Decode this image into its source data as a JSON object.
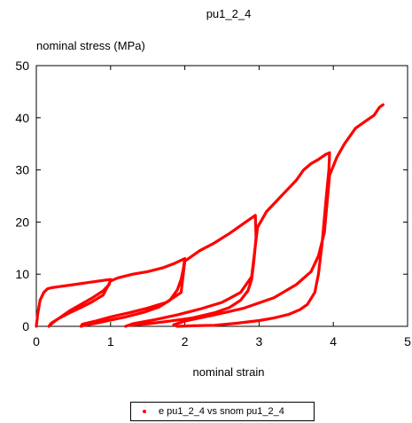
{
  "chart_data": {
    "type": "line",
    "title": "pu1_2_4",
    "xlabel": "nominal strain",
    "ylabel": "nominal stress (MPa)",
    "xlim": [
      0,
      5
    ],
    "ylim": [
      0,
      50
    ],
    "xticks": [
      "0",
      "1",
      "2",
      "3",
      "4",
      "5"
    ],
    "yticks": [
      "0",
      "10",
      "20",
      "30",
      "40",
      "50"
    ],
    "grid": false,
    "legend_position": "bottom",
    "color": "#ff0000",
    "series": [
      {
        "name": "e pu1_2_4 vs snom pu1_2_4",
        "x": [
          0,
          0.02,
          0.05,
          0.1,
          0.15,
          0.2,
          0.3,
          0.5,
          0.7,
          0.85,
          1.0,
          0.98,
          0.9,
          0.75,
          0.6,
          0.45,
          0.33,
          0.25,
          0.19,
          0.17,
          0.2,
          0.3,
          0.45,
          0.6,
          0.75,
          0.9,
          1.0,
          1.1,
          1.3,
          1.5,
          1.7,
          1.85,
          2.0,
          1.98,
          1.95,
          1.9,
          1.8,
          1.65,
          1.45,
          1.2,
          1.0,
          0.8,
          0.65,
          0.6,
          0.62,
          0.8,
          1.0,
          1.25,
          1.5,
          1.75,
          1.95,
          2.0,
          2.2,
          2.4,
          2.6,
          2.8,
          2.95,
          2.96,
          2.93,
          2.9,
          2.85,
          2.75,
          2.6,
          2.4,
          2.1,
          1.8,
          1.5,
          1.25,
          1.2,
          1.3,
          1.6,
          1.9,
          2.2,
          2.5,
          2.75,
          2.9,
          2.98,
          3.1,
          3.3,
          3.4,
          3.5,
          3.6,
          3.7,
          3.8,
          3.9,
          3.95,
          3.94,
          3.9,
          3.85,
          3.8,
          3.75,
          3.65,
          3.55,
          3.4,
          3.2,
          3.0,
          2.7,
          2.4,
          2.1,
          1.9,
          1.85,
          2.0,
          2.4,
          2.8,
          3.2,
          3.5,
          3.7,
          3.8,
          3.88,
          3.95,
          4.05,
          4.15,
          4.3,
          4.45,
          4.55,
          4.62,
          4.67
        ],
        "y": [
          0,
          2.5,
          5,
          6.5,
          7.2,
          7.4,
          7.6,
          8.0,
          8.4,
          8.7,
          9.0,
          8.0,
          6.8,
          5.4,
          4.2,
          3.0,
          1.8,
          1.0,
          0.3,
          0,
          0.6,
          1.5,
          2.6,
          3.6,
          4.7,
          6.0,
          8.7,
          9.3,
          10.0,
          10.5,
          11.2,
          12.0,
          13.0,
          11.0,
          9.0,
          7.0,
          5.0,
          3.7,
          2.7,
          1.8,
          1.2,
          0.6,
          0.2,
          0,
          0.4,
          1.0,
          1.8,
          2.6,
          3.5,
          4.6,
          6.5,
          12.5,
          14.5,
          16.0,
          17.8,
          19.8,
          21.3,
          17.0,
          12.5,
          9.0,
          6.8,
          5.0,
          3.6,
          2.6,
          1.6,
          1.0,
          0.5,
          0.2,
          0,
          0.5,
          1.3,
          2.2,
          3.3,
          4.6,
          6.5,
          9.5,
          19.0,
          22.0,
          25.0,
          26.5,
          28.0,
          30.0,
          31.2,
          32.0,
          33.0,
          33.3,
          30.0,
          24.0,
          16.0,
          10.0,
          6.5,
          4.2,
          3.2,
          2.3,
          1.6,
          1.1,
          0.6,
          0.2,
          0.1,
          0,
          0.3,
          1.0,
          2.2,
          3.5,
          5.5,
          8.0,
          10.5,
          13.5,
          18.0,
          29.0,
          32.5,
          35.0,
          38.0,
          39.5,
          40.5,
          42.0,
          42.5
        ]
      }
    ]
  }
}
